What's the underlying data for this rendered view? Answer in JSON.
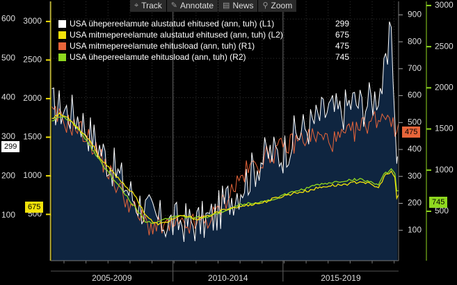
{
  "toolbar": {
    "track": {
      "label": "Track",
      "icon": "crosshair-icon"
    },
    "annotate": {
      "label": "Annotate",
      "icon": "pencil-icon"
    },
    "news": {
      "label": "News",
      "icon": "news-icon"
    },
    "zoom": {
      "label": "Zoom",
      "icon": "magnifier-icon"
    }
  },
  "chart_data": {
    "type": "line",
    "title": "",
    "x_period_labels": [
      "2005-2009",
      "2010-2014",
      "2015-2019"
    ],
    "x_range": [
      2004.4,
      2020.2
    ],
    "axes": {
      "L1": {
        "ticks": [
          100,
          200,
          300,
          400,
          500,
          600
        ],
        "range": [
          -15,
          645
        ]
      },
      "L2": {
        "ticks": [
          500,
          1000,
          1500,
          2000,
          2500,
          3000
        ],
        "range": [
          -100,
          3260
        ]
      },
      "R1": {
        "ticks": [
          100,
          200,
          300,
          400,
          500,
          600,
          700,
          800,
          900
        ],
        "range": [
          -13,
          950
        ]
      },
      "R2": {
        "ticks": [
          500,
          1000,
          1500,
          2000,
          2500,
          3000
        ],
        "range": [
          -100,
          3050
        ]
      }
    },
    "series": [
      {
        "name": "USA ühepereelamute alustatud ehitused (ann, tuh) (L1)",
        "axis": "L1",
        "last": 299,
        "color": "#ffffff",
        "anchors": [
          [
            2004.45,
            380
          ],
          [
            2005.0,
            370
          ],
          [
            2005.7,
            350
          ],
          [
            2006.3,
            300
          ],
          [
            2006.9,
            250
          ],
          [
            2007.5,
            200
          ],
          [
            2008.1,
            150
          ],
          [
            2008.6,
            120
          ],
          [
            2009.2,
            90
          ],
          [
            2009.8,
            80
          ],
          [
            2010.3,
            85
          ],
          [
            2010.8,
            80
          ],
          [
            2011.3,
            85
          ],
          [
            2011.9,
            100
          ],
          [
            2012.4,
            140
          ],
          [
            2012.9,
            165
          ],
          [
            2013.4,
            200
          ],
          [
            2013.9,
            240
          ],
          [
            2014.4,
            260
          ],
          [
            2014.9,
            255
          ],
          [
            2015.4,
            300
          ],
          [
            2015.9,
            320
          ],
          [
            2016.4,
            340
          ],
          [
            2017.0,
            370
          ],
          [
            2017.5,
            360
          ],
          [
            2018.1,
            390
          ],
          [
            2018.6,
            380
          ],
          [
            2019.1,
            400
          ],
          [
            2019.5,
            440
          ],
          [
            2019.75,
            500
          ],
          [
            2019.85,
            620
          ],
          [
            2019.95,
            480
          ],
          [
            2020.05,
            300
          ],
          [
            2020.15,
            250
          ]
        ],
        "noise": 55
      },
      {
        "name": "USA mitmepereelamute alustatud ehitused (ann, tuh) (L2)",
        "axis": "L2",
        "last": 675,
        "color": "#f2e20a",
        "anchors": [
          [
            2004.45,
            1750
          ],
          [
            2004.8,
            1800
          ],
          [
            2005.2,
            1750
          ],
          [
            2005.7,
            1600
          ],
          [
            2006.2,
            1450
          ],
          [
            2006.7,
            1200
          ],
          [
            2007.2,
            1050
          ],
          [
            2007.7,
            900
          ],
          [
            2008.2,
            750
          ],
          [
            2008.7,
            500
          ],
          [
            2009.1,
            380
          ],
          [
            2009.5,
            380
          ],
          [
            2010.0,
            450
          ],
          [
            2010.5,
            480
          ],
          [
            2011.0,
            440
          ],
          [
            2011.5,
            470
          ],
          [
            2012.0,
            530
          ],
          [
            2012.5,
            580
          ],
          [
            2013.0,
            600
          ],
          [
            2013.5,
            630
          ],
          [
            2014.0,
            650
          ],
          [
            2014.5,
            700
          ],
          [
            2015.0,
            740
          ],
          [
            2015.5,
            780
          ],
          [
            2016.0,
            800
          ],
          [
            2016.5,
            840
          ],
          [
            2017.0,
            870
          ],
          [
            2017.5,
            880
          ],
          [
            2018.0,
            900
          ],
          [
            2018.5,
            930
          ],
          [
            2019.0,
            880
          ],
          [
            2019.3,
            840
          ],
          [
            2019.55,
            1000
          ],
          [
            2019.9,
            1050
          ],
          [
            2020.05,
            950
          ],
          [
            2020.1,
            700
          ],
          [
            2020.2,
            760
          ]
        ],
        "noise": 18
      },
      {
        "name": "USA mitmepereelamute ehitusload (ann, tuh) (R1)",
        "axis": "R1",
        "last": 475,
        "color": "#e8653a",
        "anchors": [
          [
            2004.45,
            530
          ],
          [
            2004.9,
            510
          ],
          [
            2005.3,
            490
          ],
          [
            2005.8,
            470
          ],
          [
            2006.3,
            420
          ],
          [
            2006.8,
            350
          ],
          [
            2007.3,
            280
          ],
          [
            2007.8,
            220
          ],
          [
            2008.3,
            160
          ],
          [
            2008.8,
            120
          ],
          [
            2009.3,
            110
          ],
          [
            2009.8,
            115
          ],
          [
            2010.3,
            110
          ],
          [
            2010.8,
            120
          ],
          [
            2011.3,
            130
          ],
          [
            2011.8,
            150
          ],
          [
            2012.3,
            210
          ],
          [
            2012.8,
            270
          ],
          [
            2013.3,
            320
          ],
          [
            2013.8,
            350
          ],
          [
            2014.3,
            380
          ],
          [
            2014.8,
            400
          ],
          [
            2015.3,
            420
          ],
          [
            2015.8,
            440
          ],
          [
            2016.3,
            450
          ],
          [
            2016.8,
            440
          ],
          [
            2017.3,
            430
          ],
          [
            2017.8,
            450
          ],
          [
            2018.3,
            470
          ],
          [
            2018.8,
            500
          ],
          [
            2019.3,
            520
          ],
          [
            2019.8,
            540
          ],
          [
            2020.0,
            460
          ],
          [
            2020.2,
            480
          ]
        ],
        "noise": 42
      },
      {
        "name": "USA ühepereelamute ehitusload (ann, tuh) (R2)",
        "axis": "R2",
        "last": 745,
        "color": "#8fd81f",
        "anchors": [
          [
            2004.45,
            1600
          ],
          [
            2004.9,
            1650
          ],
          [
            2005.3,
            1600
          ],
          [
            2005.8,
            1450
          ],
          [
            2006.3,
            1250
          ],
          [
            2006.8,
            1050
          ],
          [
            2007.3,
            870
          ],
          [
            2007.8,
            700
          ],
          [
            2008.3,
            520
          ],
          [
            2008.7,
            380
          ],
          [
            2009.0,
            360
          ],
          [
            2009.5,
            400
          ],
          [
            2010.0,
            440
          ],
          [
            2010.5,
            430
          ],
          [
            2011.0,
            420
          ],
          [
            2011.5,
            430
          ],
          [
            2012.0,
            480
          ],
          [
            2012.5,
            530
          ],
          [
            2013.0,
            580
          ],
          [
            2013.5,
            600
          ],
          [
            2014.0,
            620
          ],
          [
            2014.5,
            640
          ],
          [
            2015.0,
            700
          ],
          [
            2015.5,
            740
          ],
          [
            2016.0,
            780
          ],
          [
            2016.5,
            820
          ],
          [
            2017.0,
            840
          ],
          [
            2017.5,
            860
          ],
          [
            2018.0,
            880
          ],
          [
            2018.5,
            890
          ],
          [
            2019.0,
            850
          ],
          [
            2019.3,
            820
          ],
          [
            2019.55,
            950
          ],
          [
            2019.9,
            1010
          ],
          [
            2020.05,
            950
          ],
          [
            2020.1,
            760
          ],
          [
            2020.2,
            745
          ]
        ],
        "noise": 14
      }
    ],
    "current_value_tags": {
      "L1": 299,
      "L2": 675,
      "R1": 475,
      "R2": 745
    }
  }
}
